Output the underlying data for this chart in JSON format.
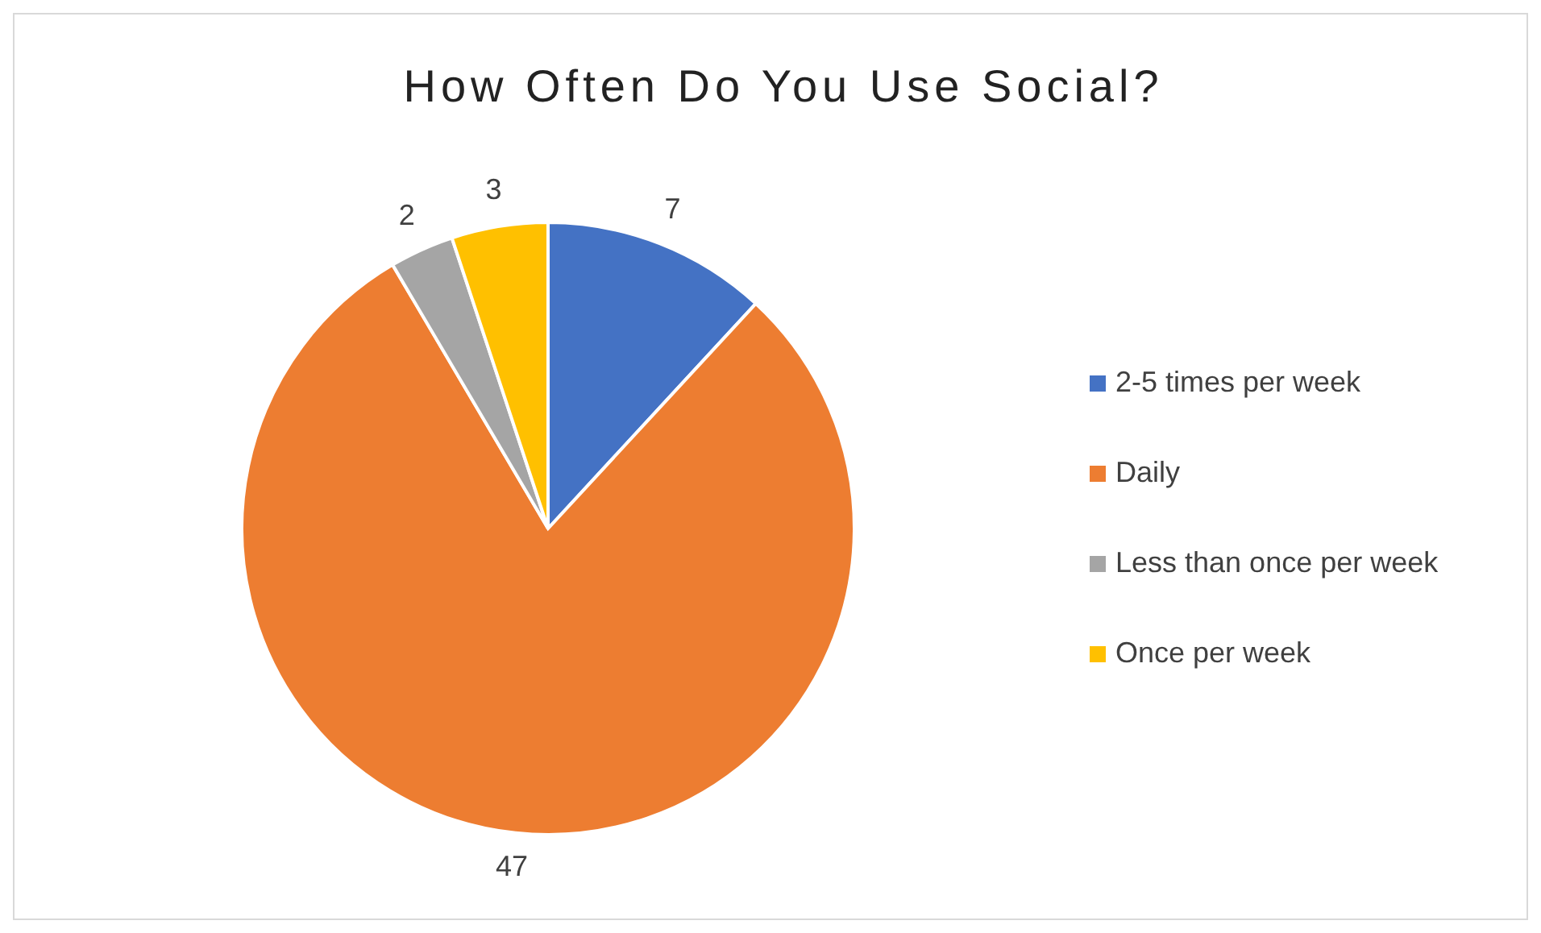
{
  "chart_data": {
    "type": "pie",
    "title": "How Often Do You Use Social?",
    "categories": [
      "2-5 times per week",
      "Daily",
      "Less than once per week",
      "Once per week"
    ],
    "values": [
      7,
      47,
      2,
      3
    ],
    "colors": [
      "#4472c4",
      "#ed7d31",
      "#a5a5a5",
      "#ffc000"
    ],
    "data_labels": true,
    "legend": "right"
  }
}
